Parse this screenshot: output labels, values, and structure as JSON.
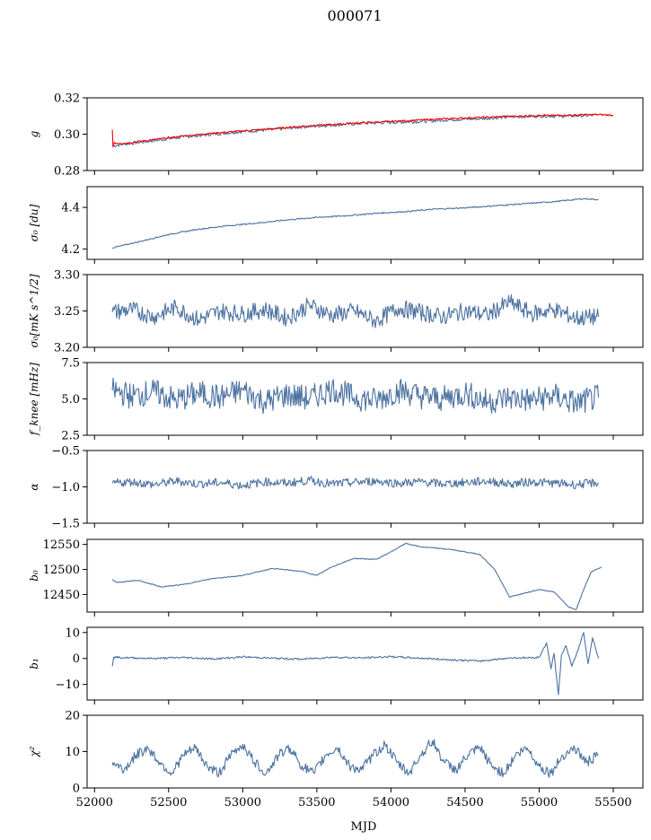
{
  "title": "000071",
  "colors": {
    "main": "#4c72a0",
    "fit": "#ff0000"
  },
  "chart_data": {
    "type": "line",
    "xlabel": "MJD",
    "xlim": [
      51950,
      55700
    ],
    "xticks": [
      52000,
      52500,
      53000,
      53500,
      54000,
      54500,
      55000,
      55500
    ],
    "xtick_labels": [
      "52000",
      "52500",
      "53000",
      "53500",
      "54000",
      "54500",
      "55000",
      "55500"
    ],
    "panels": [
      {
        "ylabel": "g",
        "ylim": [
          0.28,
          0.32
        ],
        "yticks": [
          0.28,
          0.3,
          0.32
        ],
        "ytick_labels": [
          "0.28",
          "0.30",
          "0.32"
        ],
        "series": [
          {
            "x": [
              52120,
              52200,
              52400,
              52600,
              52800,
              53000,
              53200,
              53400,
              53600,
              53800,
              54000,
              54200,
              54400,
              54600,
              54800,
              55000,
              55200,
              55400
            ],
            "y": [
              0.2935,
              0.2945,
              0.2965,
              0.2985,
              0.3,
              0.3015,
              0.3025,
              0.304,
              0.305,
              0.306,
              0.3065,
              0.307,
              0.308,
              0.3085,
              0.3095,
              0.31,
              0.31,
              0.3105
            ]
          },
          {
            "x": [
              52120,
              52125,
              52130,
              52200,
              52400,
              52600,
              52800,
              53000,
              53200,
              53400,
              53600,
              53800,
              54000,
              54200,
              54400,
              54600,
              54800,
              55000,
              55200,
              55400,
              55500
            ],
            "y": [
              0.3025,
              0.293,
              0.295,
              0.295,
              0.297,
              0.299,
              0.3005,
              0.3018,
              0.303,
              0.3043,
              0.3053,
              0.3062,
              0.307,
              0.3078,
              0.3086,
              0.3092,
              0.3098,
              0.3102,
              0.3104,
              0.3108,
              0.3104
            ]
          }
        ]
      },
      {
        "ylabel": "σ₀ [du]",
        "ylim": [
          4.15,
          4.5
        ],
        "yticks": [
          4.2,
          4.4
        ],
        "ytick_labels": [
          "4.2",
          "4.4"
        ],
        "series": [
          {
            "x": [
              52120,
              52300,
              52500,
              52700,
              52900,
              53100,
              53300,
              53500,
              53700,
              53900,
              54100,
              54300,
              54500,
              54700,
              54900,
              55100,
              55300,
              55400
            ],
            "y": [
              4.205,
              4.235,
              4.27,
              4.295,
              4.312,
              4.325,
              4.34,
              4.352,
              4.36,
              4.372,
              4.38,
              4.392,
              4.398,
              4.408,
              4.418,
              4.428,
              4.442,
              4.438
            ]
          }
        ]
      },
      {
        "ylabel": "σ₀[mK s^1/2]",
        "ylim": [
          3.2,
          3.3
        ],
        "yticks": [
          3.2,
          3.25,
          3.3
        ],
        "ytick_labels": [
          "3.20",
          "3.25",
          "3.30"
        ],
        "series": [
          {
            "x": [
              52120,
              52250,
              52400,
              52550,
              52700,
              52850,
              53000,
              53150,
              53300,
              53450,
              53600,
              53750,
              53900,
              54050,
              54200,
              54350,
              54500,
              54650,
              54800,
              54950,
              55100,
              55250,
              55400
            ],
            "y": [
              3.248,
              3.252,
              3.242,
              3.255,
              3.238,
              3.25,
              3.246,
              3.252,
              3.24,
              3.258,
              3.244,
              3.25,
              3.236,
              3.254,
              3.248,
              3.242,
              3.25,
              3.244,
              3.262,
              3.246,
              3.252,
              3.24,
              3.242
            ]
          }
        ]
      },
      {
        "ylabel": "f_knee [mHz]",
        "ylim": [
          2.5,
          7.5
        ],
        "yticks": [
          2.5,
          5.0,
          7.5
        ],
        "ytick_labels": [
          "2.5",
          "5.0",
          "7.5"
        ],
        "series": [
          {
            "x": [
              52120,
              52250,
              52400,
              52550,
              52700,
              52850,
              53000,
              53150,
              53300,
              53450,
              53600,
              53750,
              53900,
              54050,
              54200,
              54350,
              54500,
              54650,
              54800,
              54950,
              55100,
              55250,
              55400
            ],
            "y": [
              5.6,
              5.2,
              5.5,
              4.9,
              5.4,
              5.1,
              5.6,
              4.8,
              5.3,
              5.0,
              5.7,
              5.1,
              4.9,
              5.6,
              5.2,
              5.0,
              5.4,
              4.8,
              5.1,
              4.9,
              5.2,
              4.7,
              5.1
            ]
          }
        ]
      },
      {
        "ylabel": "α",
        "ylim": [
          -1.5,
          -0.5
        ],
        "yticks": [
          -1.5,
          -1.0,
          -0.5
        ],
        "ytick_labels": [
          "−1.5",
          "−1.0",
          "−0.5"
        ],
        "series": [
          {
            "x": [
              52120,
              52250,
              52400,
              52550,
              52700,
              52850,
              53000,
              53150,
              53300,
              53450,
              53600,
              53750,
              53900,
              54050,
              54200,
              54350,
              54500,
              54650,
              54800,
              54950,
              55100,
              55250,
              55400
            ],
            "y": [
              -0.95,
              -0.93,
              -0.97,
              -0.92,
              -0.96,
              -0.94,
              -0.98,
              -0.93,
              -0.95,
              -0.91,
              -0.96,
              -0.94,
              -0.92,
              -0.95,
              -0.93,
              -0.96,
              -0.94,
              -0.92,
              -0.96,
              -0.93,
              -0.95,
              -0.97,
              -0.94
            ]
          }
        ]
      },
      {
        "ylabel": "b₀",
        "ylim": [
          12415,
          12560
        ],
        "yticks": [
          12450,
          12500,
          12550
        ],
        "ytick_labels": [
          "12450",
          "12500",
          "12550"
        ],
        "series": [
          {
            "x": [
              52120,
              52150,
              52300,
              52450,
              52600,
              52800,
              53000,
              53200,
              53400,
              53500,
              53600,
              53750,
              53900,
              54000,
              54100,
              54200,
              54400,
              54600,
              54700,
              54800,
              55000,
              55100,
              55150,
              55200,
              55250,
              55300,
              55350,
              55420
            ],
            "y": [
              12480,
              12474,
              12478,
              12465,
              12470,
              12482,
              12488,
              12502,
              12496,
              12488,
              12505,
              12522,
              12520,
              12535,
              12552,
              12545,
              12540,
              12530,
              12500,
              12445,
              12460,
              12455,
              12440,
              12425,
              12420,
              12460,
              12495,
              12505
            ]
          }
        ]
      },
      {
        "ylabel": "b₁",
        "ylim": [
          -16,
          12
        ],
        "yticks": [
          -10,
          0,
          10
        ],
        "ytick_labels": [
          "−10",
          "0",
          "10"
        ],
        "series": [
          {
            "x": [
              52120,
              52130,
              52200,
              52400,
              52600,
              52800,
              53000,
              53200,
              53400,
              53600,
              53800,
              54000,
              54200,
              54400,
              54600,
              54800,
              54950,
              55000,
              55050,
              55080,
              55100,
              55130,
              55150,
              55180,
              55220,
              55260,
              55300,
              55330,
              55360,
              55400
            ],
            "y": [
              -3,
              0.5,
              0.3,
              0.0,
              0.4,
              -0.2,
              0.6,
              0.1,
              -0.3,
              0.5,
              0.2,
              0.7,
              0.1,
              -0.5,
              -1.0,
              0.2,
              0.3,
              0.5,
              6,
              -4,
              2,
              -14,
              1,
              5,
              -3,
              3,
              10,
              -2,
              8,
              0
            ]
          }
        ]
      },
      {
        "ylabel": "χ²",
        "ylim": [
          0,
          20
        ],
        "yticks": [
          0,
          10,
          20
        ],
        "ytick_labels": [
          "0",
          "10",
          "20"
        ],
        "series": [
          {
            "x": [
              52120,
              52200,
              52280,
              52360,
              52440,
              52520,
              52600,
              52680,
              52760,
              52840,
              52920,
              53000,
              53080,
              53160,
              53240,
              53320,
              53400,
              53480,
              53560,
              53640,
              53720,
              53800,
              53880,
              53960,
              54040,
              54120,
              54200,
              54280,
              54360,
              54440,
              54520,
              54600,
              54680,
              54760,
              54840,
              54920,
              55000,
              55080,
              55160,
              55240,
              55320,
              55400
            ],
            "y": [
              7,
              5,
              9,
              11,
              7,
              4,
              9,
              11,
              6,
              4,
              9,
              12,
              7,
              4,
              9,
              11,
              6,
              4,
              9,
              11,
              6,
              5,
              9,
              12,
              7,
              4,
              9,
              13,
              7,
              5,
              9,
              11,
              6,
              4,
              9,
              11,
              6,
              4,
              9,
              11,
              7,
              9
            ]
          }
        ]
      }
    ]
  }
}
